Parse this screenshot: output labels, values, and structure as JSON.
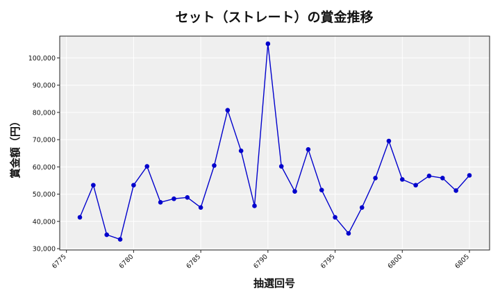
{
  "chart_data": {
    "type": "line",
    "title": "セット（ストレート）の賞金推移",
    "xlabel": "抽選回号",
    "ylabel": "賞金額（円）",
    "xlim": [
      6774.5,
      6806.5
    ],
    "ylim": [
      29500,
      108000
    ],
    "x_ticks": [
      6775,
      6780,
      6785,
      6790,
      6795,
      6800,
      6805
    ],
    "y_ticks": [
      30000,
      40000,
      50000,
      60000,
      70000,
      80000,
      90000,
      100000
    ],
    "y_tick_labels": [
      "30,000",
      "40,000",
      "50,000",
      "60,000",
      "70,000",
      "80,000",
      "90,000",
      "100,000"
    ],
    "grid": true,
    "series": [
      {
        "color": "#0000cc",
        "x": [
          6776,
          6777,
          6778,
          6779,
          6780,
          6781,
          6782,
          6783,
          6784,
          6785,
          6786,
          6787,
          6788,
          6789,
          6790,
          6791,
          6792,
          6793,
          6794,
          6795,
          6796,
          6797,
          6798,
          6799,
          6800,
          6801,
          6802,
          6803,
          6804,
          6805
        ],
        "y": [
          41500,
          53300,
          35100,
          33400,
          53300,
          60200,
          47000,
          48300,
          48800,
          45100,
          60500,
          80800,
          65900,
          45700,
          105200,
          60200,
          51000,
          66400,
          51500,
          41500,
          35600,
          45100,
          55900,
          69500,
          55400,
          53300,
          56700,
          55900,
          51300,
          56900
        ]
      }
    ]
  }
}
